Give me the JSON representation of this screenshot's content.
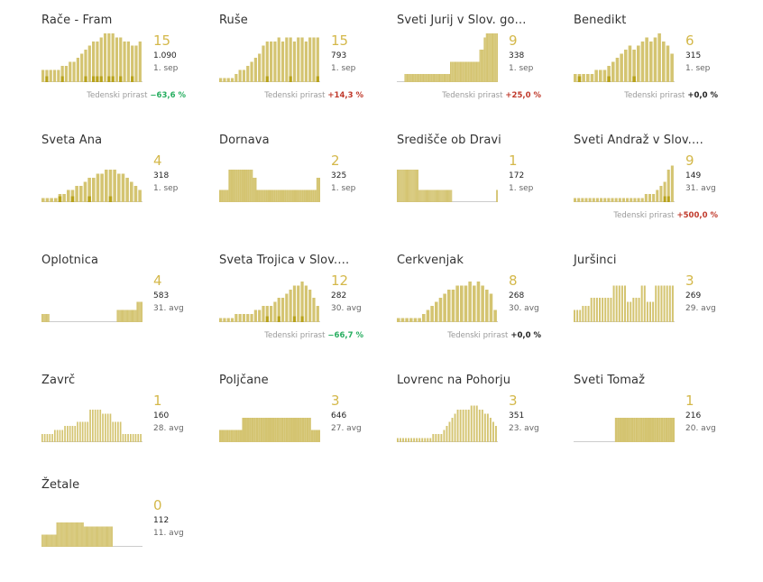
{
  "colors": {
    "bar": "#d4c471",
    "highlight": "#b8a21a",
    "baseline": "#cccccc",
    "big": "#d4b84a",
    "positive": "#c0392b",
    "negative": "#27ae60"
  },
  "growth_label": "Tedenski prirast",
  "chart_data": [
    {
      "type": "bar",
      "title": "Rače - Fram",
      "active": "15",
      "total": "1.090",
      "date": "1. sep",
      "growth": "−63,6 %",
      "growth_dir": "neg",
      "values": [
        3,
        3,
        3,
        3,
        3,
        4,
        4,
        5,
        5,
        6,
        7,
        8,
        9,
        10,
        10,
        11,
        12,
        12,
        12,
        11,
        11,
        10,
        10,
        9,
        9,
        10
      ],
      "highlights": [
        0,
        1,
        0,
        0,
        0,
        1,
        0,
        0,
        0,
        0,
        0,
        1,
        0,
        1,
        1,
        1,
        0,
        1,
        1,
        0,
        1,
        0,
        0,
        1,
        0,
        0
      ]
    },
    {
      "type": "bar",
      "title": "Ruše",
      "active": "15",
      "total": "793",
      "date": "1. sep",
      "growth": "+14,3 %",
      "growth_dir": "pos",
      "values": [
        1,
        1,
        1,
        1,
        2,
        3,
        3,
        4,
        5,
        6,
        7,
        9,
        10,
        10,
        10,
        11,
        10,
        11,
        11,
        10,
        11,
        11,
        10,
        11,
        11,
        11
      ],
      "highlights": [
        0,
        0,
        0,
        0,
        0,
        0,
        0,
        0,
        0,
        0,
        0,
        0,
        1,
        0,
        0,
        0,
        0,
        0,
        1,
        0,
        0,
        0,
        0,
        0,
        0,
        1
      ]
    },
    {
      "type": "bar",
      "title": "Sveti Jurij v Slov. go…",
      "active": "9",
      "total": "338",
      "date": "1. sep",
      "growth": "+25,0 %",
      "growth_dir": "pos",
      "values": [
        0,
        0,
        0,
        0,
        0,
        0,
        0,
        2,
        2,
        2,
        2,
        2,
        2,
        2,
        2,
        2,
        2,
        2,
        2,
        2,
        2,
        2,
        2,
        2,
        2,
        2,
        2,
        2,
        2,
        2,
        2,
        2,
        2,
        2,
        2,
        2,
        2,
        2,
        2,
        2,
        2,
        2,
        2,
        2,
        2,
        2,
        2,
        2,
        2,
        5,
        5,
        5,
        5,
        5,
        5,
        5,
        5,
        5,
        5,
        5,
        5,
        5,
        5,
        5,
        5,
        5,
        5,
        5,
        5,
        5,
        5,
        5,
        5,
        5,
        5,
        5,
        8,
        8,
        8,
        8,
        11,
        11,
        12,
        12,
        12,
        12,
        12,
        12,
        12,
        12,
        12,
        12,
        12
      ],
      "highlights": []
    },
    {
      "type": "bar",
      "title": "Benedikt",
      "active": "6",
      "total": "315",
      "date": "1. sep",
      "growth": "+0,0 %",
      "growth_dir": "zero",
      "values": [
        2,
        2,
        2,
        2,
        2,
        3,
        3,
        3,
        4,
        5,
        6,
        7,
        8,
        9,
        8,
        9,
        10,
        11,
        10,
        11,
        12,
        10,
        9,
        7
      ],
      "highlights": [
        0,
        1,
        0,
        0,
        0,
        0,
        0,
        0,
        1,
        0,
        0,
        0,
        0,
        0,
        1,
        0,
        0,
        0,
        0,
        0,
        0,
        0,
        0,
        0
      ]
    },
    {
      "type": "bar",
      "title": "Sveta Ana",
      "active": "4",
      "total": "318",
      "date": "1. sep",
      "growth": "",
      "growth_dir": "zero",
      "values": [
        1,
        1,
        1,
        1,
        2,
        2,
        3,
        3,
        4,
        4,
        5,
        6,
        6,
        7,
        7,
        8,
        8,
        8,
        7,
        7,
        6,
        5,
        4,
        3
      ],
      "highlights": [
        0,
        0,
        0,
        0,
        1,
        0,
        0,
        1,
        0,
        0,
        0,
        1,
        0,
        0,
        0,
        0,
        1,
        0,
        0,
        0,
        0,
        0,
        0,
        0
      ]
    },
    {
      "type": "bar",
      "title": "Dornava",
      "active": "2",
      "total": "325",
      "date": "1. sep",
      "growth": "",
      "growth_dir": "zero",
      "values": [
        3,
        3,
        3,
        3,
        3,
        8,
        8,
        8,
        8,
        8,
        8,
        8,
        8,
        8,
        8,
        8,
        8,
        8,
        6,
        6,
        3,
        3,
        3,
        3,
        3,
        3,
        3,
        3,
        3,
        3,
        3,
        3,
        3,
        3,
        3,
        3,
        3,
        3,
        3,
        3,
        3,
        3,
        3,
        3,
        3,
        3,
        3,
        3,
        3,
        3,
        3,
        3,
        6,
        6
      ],
      "highlights": []
    },
    {
      "type": "bar",
      "title": "Središče ob Dravi",
      "active": "1",
      "total": "172",
      "date": "1. sep",
      "growth": "",
      "growth_dir": "zero",
      "values": [
        8,
        8,
        8,
        8,
        8,
        8,
        8,
        8,
        8,
        8,
        8,
        8,
        8,
        8,
        8,
        8,
        8,
        8,
        8,
        8,
        8,
        8,
        8,
        8,
        8,
        3,
        3,
        3,
        3,
        3,
        3,
        3,
        3,
        3,
        3,
        3,
        3,
        3,
        3,
        3,
        3,
        3,
        3,
        3,
        3,
        3,
        3,
        3,
        3,
        3,
        3,
        3,
        3,
        3,
        3,
        3,
        3,
        3,
        3,
        3,
        3,
        3,
        3,
        3,
        0,
        0,
        0,
        0,
        0,
        0,
        0,
        0,
        0,
        0,
        0,
        0,
        0,
        0,
        0,
        0,
        0,
        0,
        0,
        0,
        0,
        0,
        0,
        0,
        0,
        0,
        0,
        0,
        0,
        0,
        0,
        0,
        0,
        0,
        0,
        0,
        0,
        0,
        0,
        0,
        0,
        0,
        0,
        0,
        0,
        0,
        0,
        0,
        0,
        0,
        0,
        3,
        3
      ],
      "highlights": []
    },
    {
      "type": "bar",
      "title": "Sveti Andraž v Slov.…",
      "active": "9",
      "total": "149",
      "date": "31. avg",
      "growth": "+500,0 %",
      "growth_dir": "pos",
      "values": [
        1,
        1,
        1,
        1,
        1,
        1,
        1,
        1,
        1,
        1,
        1,
        1,
        1,
        1,
        1,
        1,
        1,
        1,
        1,
        2,
        2,
        2,
        3,
        4,
        5,
        8,
        9
      ],
      "highlights": [
        0,
        0,
        0,
        0,
        0,
        0,
        0,
        0,
        0,
        0,
        0,
        0,
        0,
        0,
        0,
        0,
        0,
        0,
        0,
        0,
        0,
        0,
        0,
        0,
        1,
        1,
        0
      ]
    },
    {
      "type": "bar",
      "title": "Oplotnica",
      "active": "4",
      "total": "583",
      "date": "31. avg",
      "growth": "",
      "growth_dir": "zero",
      "values": [
        2,
        2,
        2,
        2,
        2,
        2,
        2,
        2,
        0,
        0,
        0,
        0,
        0,
        0,
        0,
        0,
        0,
        0,
        0,
        0,
        0,
        0,
        0,
        0,
        0,
        0,
        0,
        0,
        0,
        0,
        0,
        0,
        0,
        0,
        0,
        0,
        0,
        0,
        0,
        0,
        0,
        0,
        0,
        0,
        0,
        0,
        0,
        0,
        0,
        0,
        0,
        0,
        0,
        0,
        0,
        0,
        0,
        0,
        0,
        0,
        0,
        0,
        0,
        0,
        0,
        0,
        0,
        0,
        0,
        0,
        0,
        0,
        0,
        0,
        0,
        0,
        3,
        3,
        3,
        3,
        3,
        3,
        3,
        3,
        3,
        3,
        3,
        3,
        3,
        3,
        3,
        3,
        3,
        3,
        3,
        3,
        5,
        5,
        5,
        5,
        5,
        5
      ],
      "highlights": []
    },
    {
      "type": "bar",
      "title": "Sveta Trojica v Slov.…",
      "active": "12",
      "total": "282",
      "date": "30. avg",
      "growth": "−66,7 %",
      "growth_dir": "neg",
      "values": [
        1,
        1,
        1,
        1,
        2,
        2,
        2,
        2,
        2,
        3,
        3,
        4,
        4,
        4,
        5,
        6,
        6,
        7,
        8,
        9,
        9,
        10,
        9,
        8,
        6,
        4
      ],
      "highlights": [
        0,
        0,
        0,
        0,
        0,
        0,
        0,
        0,
        0,
        0,
        0,
        0,
        1,
        0,
        0,
        1,
        0,
        0,
        0,
        1,
        0,
        1,
        0,
        0,
        0,
        0
      ]
    },
    {
      "type": "bar",
      "title": "Cerkvenjak",
      "active": "8",
      "total": "268",
      "date": "30. avg",
      "growth": "+0,0 %",
      "growth_dir": "zero",
      "values": [
        1,
        1,
        1,
        1,
        1,
        1,
        2,
        3,
        4,
        5,
        6,
        7,
        8,
        8,
        9,
        9,
        9,
        10,
        9,
        10,
        9,
        8,
        7,
        3
      ],
      "highlights": [
        0,
        0,
        0,
        0,
        0,
        0,
        0,
        0,
        0,
        0,
        0,
        0,
        0,
        0,
        0,
        0,
        0,
        0,
        0,
        0,
        0,
        0,
        0,
        0
      ]
    },
    {
      "type": "bar",
      "title": "Juršinci",
      "active": "3",
      "total": "269",
      "date": "29. avg",
      "growth": "",
      "growth_dir": "zero",
      "values": [
        3,
        3,
        3,
        4,
        4,
        4,
        6,
        6,
        6,
        6,
        6,
        6,
        6,
        6,
        9,
        9,
        9,
        9,
        9,
        5,
        5,
        6,
        6,
        6,
        9,
        9,
        5,
        5,
        5,
        9,
        9,
        9,
        9,
        9,
        9,
        9
      ],
      "highlights": []
    },
    {
      "type": "bar",
      "title": "Zavrč",
      "active": "1",
      "total": "160",
      "date": "28. avg",
      "growth": "",
      "growth_dir": "zero",
      "values": [
        2,
        2,
        2,
        2,
        2,
        3,
        3,
        3,
        3,
        4,
        4,
        4,
        4,
        4,
        5,
        5,
        5,
        5,
        5,
        8,
        8,
        8,
        8,
        8,
        7,
        7,
        7,
        7,
        5,
        5,
        5,
        5,
        2,
        2,
        2,
        2,
        2,
        2,
        2,
        2
      ],
      "highlights": []
    },
    {
      "type": "bar",
      "title": "Poljčane",
      "active": "3",
      "total": "646",
      "date": "27. avg",
      "growth": "",
      "growth_dir": "zero",
      "values": [
        3,
        3,
        3,
        3,
        3,
        3,
        3,
        3,
        3,
        3,
        6,
        6,
        6,
        6,
        6,
        6,
        6,
        6,
        6,
        6,
        6,
        6,
        6,
        6,
        6,
        6,
        6,
        6,
        6,
        6,
        6,
        6,
        6,
        6,
        6,
        6,
        6,
        6,
        6,
        6,
        3,
        3,
        3,
        3
      ],
      "highlights": []
    },
    {
      "type": "bar",
      "title": "Lovrenc na Pohorju",
      "active": "3",
      "total": "351",
      "date": "23. avg",
      "growth": "",
      "growth_dir": "zero",
      "values": [
        1,
        1,
        1,
        1,
        1,
        1,
        1,
        1,
        1,
        1,
        1,
        1,
        1,
        2,
        2,
        2,
        2,
        3,
        4,
        5,
        6,
        7,
        8,
        8,
        8,
        8,
        8,
        9,
        9,
        9,
        8,
        8,
        7,
        7,
        6,
        5,
        4
      ],
      "highlights": []
    },
    {
      "type": "bar",
      "title": "Sveti Tomaž",
      "active": "1",
      "total": "216",
      "date": "20. avg",
      "growth": "",
      "growth_dir": "zero",
      "values": [
        0,
        0,
        0,
        0,
        0,
        0,
        0,
        0,
        0,
        0,
        0,
        0,
        0,
        0,
        0,
        0,
        0,
        0,
        6,
        6,
        6,
        6,
        6,
        6,
        6,
        6,
        6,
        6,
        6,
        6,
        6,
        6,
        6,
        6,
        6,
        6,
        6,
        6,
        6,
        6,
        6,
        6,
        6,
        6
      ],
      "highlights": []
    },
    {
      "type": "bar",
      "title": "Žetale",
      "active": "0",
      "total": "112",
      "date": "11. avg",
      "growth": "",
      "growth_dir": "zero",
      "values": [
        3,
        3,
        3,
        3,
        3,
        3,
        3,
        3,
        3,
        3,
        3,
        3,
        3,
        3,
        3,
        3,
        3,
        3,
        6,
        6,
        6,
        6,
        6,
        6,
        6,
        6,
        6,
        6,
        6,
        6,
        6,
        6,
        6,
        6,
        6,
        6,
        6,
        6,
        6,
        6,
        6,
        6,
        6,
        6,
        6,
        6,
        6,
        6,
        6,
        6,
        6,
        5,
        5,
        5,
        5,
        5,
        5,
        5,
        5,
        5,
        5,
        5,
        5,
        5,
        5,
        5,
        5,
        5,
        5,
        5,
        5,
        5,
        5,
        5,
        5,
        5,
        5,
        5,
        5,
        5,
        5,
        5,
        5,
        5,
        5,
        5,
        0,
        0,
        0,
        0,
        0,
        0,
        0,
        0,
        0,
        0,
        0,
        0,
        0,
        0,
        0,
        0,
        0,
        0,
        0,
        0,
        0,
        0,
        0,
        0,
        0,
        0,
        0,
        0,
        0,
        0,
        0,
        0,
        0,
        0,
        0,
        0
      ],
      "highlights": []
    }
  ]
}
